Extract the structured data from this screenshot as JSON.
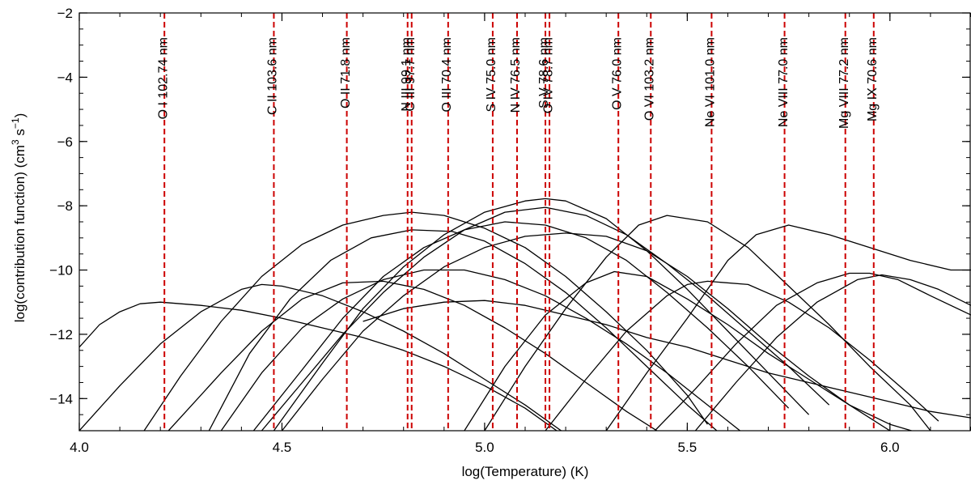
{
  "chart_data": {
    "type": "line",
    "title": "",
    "xlabel": "log(Temperature) (K)",
    "ylabel": "log(contribution function) (cm3 s-1)",
    "ylabel_parts": {
      "pre": "log(contribution function)  (cm",
      "sup1": "3",
      "mid": " s",
      "sup2": "−1",
      "post": ")"
    },
    "xlim": [
      4.0,
      6.2
    ],
    "ylim": [
      -15,
      -2
    ],
    "xticks": [
      4.0,
      4.5,
      5.0,
      5.5,
      6.0
    ],
    "xtick_labels": [
      "4.0",
      "4.5",
      "5.0",
      "5.5",
      "6.0"
    ],
    "yticks": [
      -14,
      -12,
      -10,
      -8,
      -6,
      -4,
      -2
    ],
    "ytick_labels": [
      "−14",
      "−12",
      "−10",
      "−8",
      "−6",
      "−4",
      "−2"
    ],
    "grid": false,
    "line_color": "#000000",
    "marker_color": "#cc0000",
    "lines": [
      {
        "label": "O I 102.74 nm",
        "x": 4.21
      },
      {
        "label": "C II 103.6 nm",
        "x": 4.48
      },
      {
        "label": "O II 71.8 nm",
        "x": 4.66
      },
      {
        "label": "N III 99.1 nm",
        "x": 4.81
      },
      {
        "label": "C III 97.7 nm",
        "x": 4.82
      },
      {
        "label": "O III 70.4 nm",
        "x": 4.91
      },
      {
        "label": "S IV 75.0 nm",
        "x": 5.02
      },
      {
        "label": "N IV 76.5 nm",
        "x": 5.08
      },
      {
        "label": "S V 78.6 nm",
        "x": 5.15
      },
      {
        "label": "O IV 78.7 nm",
        "x": 5.16
      },
      {
        "label": "O V 76.0 nm",
        "x": 5.33
      },
      {
        "label": "O VI 103.2 nm",
        "x": 5.41
      },
      {
        "label": "Ne VI 101.0 nm",
        "x": 5.56
      },
      {
        "label": "Ne VIII 77.0 nm",
        "x": 5.74
      },
      {
        "label": "Mg VIII 77.2 nm",
        "x": 5.89
      },
      {
        "label": "Mg IX 70.6 nm",
        "x": 5.96
      }
    ],
    "series": [
      {
        "x": [
          4.0,
          4.05,
          4.1,
          4.15,
          4.2,
          4.3,
          4.4,
          4.5,
          4.6,
          4.7,
          4.8,
          4.9,
          5.0,
          5.1,
          5.2
        ],
        "values": [
          -12.4,
          -11.7,
          -11.3,
          -11.05,
          -11.0,
          -11.1,
          -11.25,
          -11.5,
          -11.8,
          -12.1,
          -12.5,
          -13.0,
          -13.6,
          -14.3,
          -15.2
        ]
      },
      {
        "x": [
          4.0,
          4.1,
          4.2,
          4.3,
          4.4,
          4.45,
          4.5,
          4.6,
          4.7,
          4.8,
          4.9,
          5.0,
          5.1,
          5.2
        ],
        "values": [
          -15.0,
          -13.6,
          -12.3,
          -11.3,
          -10.6,
          -10.45,
          -10.5,
          -10.8,
          -11.3,
          -11.9,
          -12.6,
          -13.4,
          -14.2,
          -15.1
        ]
      },
      {
        "x": [
          4.16,
          4.25,
          4.35,
          4.45,
          4.55,
          4.65,
          4.75,
          4.82,
          4.9,
          5.0,
          5.1,
          5.2,
          5.3,
          5.4,
          5.5,
          5.55
        ],
        "values": [
          -15.0,
          -13.3,
          -11.6,
          -10.2,
          -9.2,
          -8.6,
          -8.3,
          -8.2,
          -8.3,
          -8.7,
          -9.3,
          -10.2,
          -11.3,
          -12.5,
          -13.9,
          -14.8
        ]
      },
      {
        "x": [
          4.22,
          4.35,
          4.45,
          4.55,
          4.65,
          4.75,
          4.85,
          4.95,
          5.05,
          5.15,
          5.25,
          5.35,
          5.45
        ],
        "values": [
          -15.0,
          -13.2,
          -11.9,
          -10.9,
          -10.4,
          -10.35,
          -10.6,
          -11.1,
          -11.8,
          -12.6,
          -13.5,
          -14.4,
          -15.2
        ]
      },
      {
        "x": [
          4.35,
          4.45,
          4.55,
          4.65,
          4.75,
          4.85,
          4.95,
          5.05,
          5.15,
          5.25,
          5.35,
          5.45,
          5.55,
          5.65
        ],
        "values": [
          -15.0,
          -13.2,
          -11.8,
          -10.9,
          -10.3,
          -10.0,
          -10.0,
          -10.3,
          -10.8,
          -11.5,
          -12.3,
          -13.2,
          -14.2,
          -15.2
        ]
      },
      {
        "x": [
          4.32,
          4.42,
          4.52,
          4.62,
          4.72,
          4.82,
          4.92,
          5.0,
          5.1,
          5.2,
          5.3,
          5.4,
          5.5,
          5.6
        ],
        "values": [
          -15.0,
          -12.6,
          -10.9,
          -9.7,
          -9.0,
          -8.75,
          -8.8,
          -9.1,
          -9.8,
          -10.7,
          -11.8,
          -13.0,
          -14.2,
          -15.3
        ]
      },
      {
        "x": [
          4.43,
          4.55,
          4.65,
          4.75,
          4.85,
          4.95,
          5.05,
          5.15,
          5.25,
          5.35,
          5.45,
          5.55,
          5.65,
          5.75
        ],
        "values": [
          -15.0,
          -13.1,
          -11.5,
          -10.2,
          -9.3,
          -8.75,
          -8.5,
          -8.6,
          -9.0,
          -9.7,
          -10.7,
          -11.8,
          -13.0,
          -14.3
        ]
      },
      {
        "x": [
          4.48,
          4.6,
          4.7,
          4.8,
          4.9,
          5.0,
          5.1,
          5.15,
          5.2,
          5.3,
          5.4,
          5.5,
          5.6,
          5.7,
          5.8
        ],
        "values": [
          -15.0,
          -12.9,
          -11.2,
          -9.9,
          -8.9,
          -8.2,
          -7.85,
          -7.78,
          -7.85,
          -8.4,
          -9.4,
          -10.6,
          -11.9,
          -13.2,
          -14.5
        ]
      },
      {
        "x": [
          4.45,
          4.55,
          4.65,
          4.75,
          4.85,
          4.95,
          5.05,
          5.15,
          5.25,
          5.35,
          5.45,
          5.55,
          5.65,
          5.75,
          5.85
        ],
        "values": [
          -15.0,
          -13.5,
          -12.0,
          -10.7,
          -9.6,
          -8.75,
          -8.2,
          -8.05,
          -8.3,
          -8.9,
          -9.8,
          -10.8,
          -11.9,
          -13.0,
          -14.2
        ]
      },
      {
        "x": [
          4.5,
          4.6,
          4.7,
          4.8,
          4.9,
          5.0,
          5.1,
          5.2,
          5.3,
          5.4,
          5.5,
          5.6,
          5.7,
          5.8,
          5.9,
          6.0
        ],
        "values": [
          -15.0,
          -13.4,
          -11.9,
          -10.8,
          -9.9,
          -9.3,
          -8.95,
          -8.85,
          -8.95,
          -9.4,
          -10.2,
          -11.2,
          -12.3,
          -13.3,
          -14.2,
          -15.0
        ]
      },
      {
        "x": [
          4.95,
          5.05,
          5.15,
          5.25,
          5.32,
          5.4,
          5.5,
          5.6,
          5.7,
          5.8,
          5.9,
          6.0,
          6.08
        ],
        "values": [
          -15.0,
          -13.0,
          -11.4,
          -10.4,
          -10.05,
          -10.2,
          -10.9,
          -11.7,
          -12.6,
          -13.4,
          -14.2,
          -14.8,
          -15.1
        ]
      },
      {
        "x": [
          5.0,
          5.1,
          5.2,
          5.3,
          5.38,
          5.45,
          5.55,
          5.65,
          5.75,
          5.85,
          5.95,
          6.05,
          6.1
        ],
        "values": [
          -15.0,
          -13.0,
          -11.2,
          -9.6,
          -8.6,
          -8.3,
          -8.5,
          -9.3,
          -10.5,
          -11.7,
          -13.0,
          -14.2,
          -15.0
        ]
      },
      {
        "x": [
          5.15,
          5.25,
          5.35,
          5.45,
          5.5,
          5.55,
          5.65,
          5.75,
          5.85,
          5.95,
          6.05,
          6.12
        ],
        "values": [
          -15.0,
          -13.4,
          -11.9,
          -10.8,
          -10.45,
          -10.35,
          -10.45,
          -11.0,
          -11.8,
          -12.8,
          -13.9,
          -14.7
        ]
      },
      {
        "x": [
          5.3,
          5.4,
          5.5,
          5.6,
          5.67,
          5.75,
          5.85,
          5.95,
          6.05,
          6.15,
          6.2
        ],
        "values": [
          -15.0,
          -13.2,
          -11.5,
          -9.7,
          -8.9,
          -8.6,
          -8.9,
          -9.3,
          -9.7,
          -10.0,
          -10.0
        ]
      },
      {
        "x": [
          5.42,
          5.52,
          5.62,
          5.72,
          5.82,
          5.9,
          5.95,
          6.02,
          6.1,
          6.2
        ],
        "values": [
          -15.0,
          -13.7,
          -12.3,
          -11.1,
          -10.4,
          -10.1,
          -10.1,
          -10.3,
          -10.8,
          -11.4
        ]
      },
      {
        "x": [
          5.52,
          5.62,
          5.72,
          5.82,
          5.92,
          5.98,
          6.05,
          6.12,
          6.2
        ],
        "values": [
          -15.0,
          -13.5,
          -12.1,
          -11.0,
          -10.3,
          -10.15,
          -10.3,
          -10.6,
          -11.1
        ]
      },
      {
        "x": [
          4.7,
          4.8,
          4.9,
          5.0,
          5.1,
          5.2,
          5.3,
          5.4,
          5.5,
          5.6,
          5.7,
          5.8,
          5.9,
          6.0,
          6.1,
          6.2
        ],
        "values": [
          -11.6,
          -11.2,
          -11.0,
          -10.95,
          -11.1,
          -11.4,
          -11.7,
          -12.1,
          -12.4,
          -12.8,
          -13.2,
          -13.5,
          -13.8,
          -14.1,
          -14.4,
          -14.6
        ]
      }
    ]
  }
}
